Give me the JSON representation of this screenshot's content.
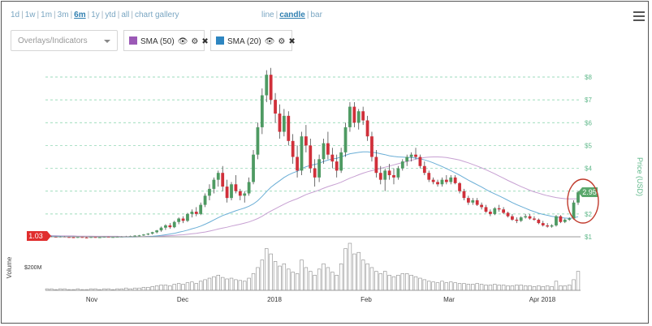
{
  "toolbar": {
    "ranges": [
      "1d",
      "1w",
      "1m",
      "3m",
      "6m",
      "1y",
      "ytd",
      "all",
      "chart gallery"
    ],
    "active_range": "6m",
    "types": [
      "line",
      "candle",
      "bar"
    ],
    "active_type": "candle"
  },
  "overlays": {
    "placeholder": "Overlays/Indicators",
    "indicators": [
      {
        "label": "SMA (50)",
        "color": "#9b59b6"
      },
      {
        "label": "SMA (20)",
        "color": "#2e86c1"
      }
    ]
  },
  "chart_data": {
    "type": "candlestick",
    "ylabel": "Price (USD)",
    "volume_label": "Volume",
    "volume_tick": "$200M",
    "y_ticks": [
      "$1",
      "$2",
      "$3",
      "$4",
      "$5",
      "$6",
      "$7",
      "$8"
    ],
    "ylim": [
      1,
      8
    ],
    "x_ticks": [
      "Nov",
      "Dec",
      "2018",
      "Feb",
      "Mar",
      "Apr 2018"
    ],
    "start_badge": "1.03",
    "end_badge": "2.95",
    "colors": {
      "up": "#4e9a62",
      "down": "#d0303a",
      "sma50": "#c7a0d2",
      "sma20": "#6aaed6",
      "grid": "#7fd0a6",
      "badge_start": "#e02e2e",
      "badge_end": "#5aa86c"
    },
    "candles": [
      [
        1.03,
        1.05,
        1.0,
        1.02
      ],
      [
        1.02,
        1.04,
        0.98,
        1.0
      ],
      [
        1.0,
        1.02,
        0.97,
        0.99
      ],
      [
        0.99,
        1.03,
        0.97,
        1.01
      ],
      [
        1.01,
        1.03,
        0.98,
        0.99
      ],
      [
        0.99,
        1.01,
        0.96,
        0.98
      ],
      [
        0.98,
        1.0,
        0.95,
        0.97
      ],
      [
        0.97,
        1.0,
        0.95,
        0.99
      ],
      [
        0.99,
        1.01,
        0.96,
        0.97
      ],
      [
        0.97,
        0.99,
        0.94,
        0.96
      ],
      [
        0.96,
        1.0,
        0.95,
        0.99
      ],
      [
        0.99,
        1.01,
        0.96,
        0.97
      ],
      [
        0.97,
        1.0,
        0.95,
        0.98
      ],
      [
        0.98,
        1.02,
        0.96,
        1.0
      ],
      [
        1.0,
        1.02,
        0.97,
        0.98
      ],
      [
        0.98,
        1.01,
        0.96,
        0.99
      ],
      [
        0.99,
        1.02,
        0.97,
        1.0
      ],
      [
        1.0,
        1.03,
        0.98,
        1.01
      ],
      [
        1.01,
        1.04,
        0.99,
        1.02
      ],
      [
        1.02,
        1.05,
        1.0,
        1.03
      ],
      [
        1.03,
        1.07,
        1.01,
        1.05
      ],
      [
        1.05,
        1.08,
        1.02,
        1.06
      ],
      [
        1.06,
        1.12,
        1.04,
        1.1
      ],
      [
        1.1,
        1.16,
        1.07,
        1.14
      ],
      [
        1.14,
        1.22,
        1.1,
        1.2
      ],
      [
        1.2,
        1.3,
        1.15,
        1.28
      ],
      [
        1.28,
        1.45,
        1.22,
        1.4
      ],
      [
        1.4,
        1.55,
        1.3,
        1.5
      ],
      [
        1.5,
        1.6,
        1.35,
        1.42
      ],
      [
        1.42,
        1.7,
        1.38,
        1.65
      ],
      [
        1.65,
        1.85,
        1.55,
        1.8
      ],
      [
        1.8,
        1.9,
        1.6,
        1.7
      ],
      [
        1.7,
        2.05,
        1.65,
        2.0
      ],
      [
        2.0,
        2.2,
        1.85,
        2.1
      ],
      [
        2.1,
        2.3,
        1.9,
        2.0
      ],
      [
        2.0,
        2.5,
        1.95,
        2.4
      ],
      [
        2.4,
        2.9,
        2.3,
        2.8
      ],
      [
        2.8,
        3.3,
        2.6,
        3.1
      ],
      [
        3.1,
        3.6,
        2.9,
        3.5
      ],
      [
        3.5,
        3.9,
        3.2,
        3.8
      ],
      [
        3.8,
        4.1,
        3.0,
        3.2
      ],
      [
        3.2,
        3.5,
        2.5,
        2.7
      ],
      [
        2.7,
        3.4,
        2.6,
        3.3
      ],
      [
        3.3,
        3.7,
        2.9,
        3.0
      ],
      [
        3.0,
        3.1,
        2.6,
        2.8
      ],
      [
        2.8,
        3.0,
        2.5,
        2.9
      ],
      [
        2.9,
        3.6,
        2.8,
        3.4
      ],
      [
        3.4,
        4.8,
        3.3,
        4.6
      ],
      [
        4.6,
        6.0,
        4.4,
        5.8
      ],
      [
        5.8,
        7.5,
        5.5,
        7.2
      ],
      [
        7.2,
        8.3,
        6.9,
        8.1
      ],
      [
        8.1,
        8.4,
        6.8,
        7.0
      ],
      [
        7.0,
        7.3,
        6.0,
        6.4
      ],
      [
        6.4,
        6.8,
        5.3,
        5.6
      ],
      [
        5.6,
        6.6,
        5.4,
        6.3
      ],
      [
        6.3,
        6.5,
        5.0,
        5.2
      ],
      [
        5.2,
        5.5,
        4.2,
        4.5
      ],
      [
        4.5,
        5.0,
        3.6,
        3.9
      ],
      [
        3.9,
        5.6,
        3.7,
        5.4
      ],
      [
        5.4,
        5.9,
        4.7,
        5.0
      ],
      [
        5.0,
        5.3,
        3.8,
        4.0
      ],
      [
        4.0,
        4.4,
        3.2,
        3.6
      ],
      [
        3.6,
        4.6,
        3.4,
        4.4
      ],
      [
        4.4,
        5.3,
        4.2,
        5.1
      ],
      [
        5.1,
        5.6,
        4.4,
        4.6
      ],
      [
        4.6,
        4.9,
        4.0,
        4.3
      ],
      [
        4.3,
        4.6,
        3.6,
        3.9
      ],
      [
        3.9,
        4.9,
        3.8,
        4.7
      ],
      [
        4.7,
        6.0,
        4.5,
        5.8
      ],
      [
        5.8,
        6.9,
        5.6,
        6.7
      ],
      [
        6.7,
        6.9,
        5.8,
        6.0
      ],
      [
        6.0,
        6.6,
        5.7,
        6.5
      ],
      [
        6.5,
        6.7,
        5.9,
        6.1
      ],
      [
        6.1,
        6.3,
        5.2,
        5.4
      ],
      [
        5.4,
        5.6,
        4.3,
        4.5
      ],
      [
        4.5,
        4.8,
        3.6,
        3.8
      ],
      [
        3.8,
        4.1,
        3.3,
        3.5
      ],
      [
        3.5,
        4.0,
        3.0,
        3.9
      ],
      [
        3.9,
        4.2,
        3.5,
        3.7
      ],
      [
        3.7,
        4.0,
        3.3,
        3.6
      ],
      [
        3.6,
        4.1,
        3.5,
        4.0
      ],
      [
        4.0,
        4.4,
        3.9,
        4.3
      ],
      [
        4.3,
        4.6,
        4.1,
        4.5
      ],
      [
        4.5,
        4.7,
        4.3,
        4.6
      ],
      [
        4.6,
        4.9,
        4.4,
        4.5
      ],
      [
        4.5,
        4.6,
        4.0,
        4.1
      ],
      [
        4.1,
        4.3,
        3.7,
        3.8
      ],
      [
        3.8,
        3.9,
        3.4,
        3.5
      ],
      [
        3.5,
        3.6,
        3.3,
        3.4
      ],
      [
        3.4,
        3.5,
        3.2,
        3.3
      ],
      [
        3.3,
        3.6,
        3.2,
        3.5
      ],
      [
        3.5,
        3.7,
        3.3,
        3.4
      ],
      [
        3.4,
        3.7,
        3.3,
        3.6
      ],
      [
        3.6,
        3.7,
        3.3,
        3.35
      ],
      [
        3.35,
        3.4,
        2.9,
        3.0
      ],
      [
        3.0,
        3.1,
        2.6,
        2.7
      ],
      [
        2.7,
        2.8,
        2.4,
        2.5
      ],
      [
        2.5,
        2.7,
        2.4,
        2.6
      ],
      [
        2.6,
        2.7,
        2.35,
        2.4
      ],
      [
        2.4,
        2.5,
        2.2,
        2.3
      ],
      [
        2.3,
        2.4,
        2.05,
        2.1
      ],
      [
        2.1,
        2.2,
        1.9,
        2.0
      ],
      [
        2.0,
        2.3,
        1.95,
        2.25
      ],
      [
        2.25,
        2.4,
        2.1,
        2.2
      ],
      [
        2.2,
        2.3,
        2.0,
        2.05
      ],
      [
        2.05,
        2.1,
        1.85,
        1.9
      ],
      [
        1.9,
        2.0,
        1.7,
        1.75
      ],
      [
        1.75,
        1.85,
        1.6,
        1.7
      ],
      [
        1.7,
        1.9,
        1.65,
        1.85
      ],
      [
        1.85,
        2.0,
        1.8,
        1.9
      ],
      [
        1.9,
        2.0,
        1.75,
        1.8
      ],
      [
        1.8,
        1.9,
        1.7,
        1.75
      ],
      [
        1.75,
        1.8,
        1.55,
        1.6
      ],
      [
        1.6,
        1.7,
        1.45,
        1.5
      ],
      [
        1.5,
        1.6,
        1.4,
        1.45
      ],
      [
        1.45,
        1.55,
        1.4,
        1.5
      ],
      [
        1.5,
        1.95,
        1.45,
        1.9
      ],
      [
        1.9,
        1.95,
        1.6,
        1.65
      ],
      [
        1.65,
        1.8,
        1.6,
        1.75
      ],
      [
        1.75,
        1.85,
        1.7,
        1.8
      ],
      [
        1.8,
        2.6,
        1.75,
        2.5
      ],
      [
        2.5,
        3.0,
        2.4,
        2.95
      ]
    ],
    "volumes": [
      2,
      2,
      1,
      2,
      2,
      1,
      1,
      2,
      1,
      1,
      2,
      2,
      1,
      2,
      2,
      1,
      2,
      2,
      3,
      2,
      3,
      3,
      4,
      4,
      5,
      6,
      7,
      7,
      6,
      8,
      9,
      8,
      10,
      11,
      9,
      12,
      14,
      16,
      18,
      20,
      17,
      15,
      16,
      14,
      13,
      12,
      16,
      22,
      30,
      40,
      55,
      48,
      38,
      32,
      35,
      28,
      24,
      22,
      40,
      30,
      25,
      20,
      28,
      35,
      30,
      24,
      20,
      35,
      55,
      62,
      48,
      50,
      40,
      35,
      30,
      25,
      22,
      25,
      20,
      18,
      20,
      22,
      22,
      20,
      18,
      16,
      14,
      12,
      11,
      10,
      12,
      10,
      11,
      10,
      9,
      9,
      8,
      8,
      9,
      8,
      7,
      7,
      8,
      7,
      7,
      6,
      6,
      7,
      7,
      6,
      6,
      5,
      6,
      5,
      6,
      5,
      12,
      6,
      6,
      7,
      14,
      25
    ],
    "sma20": [
      1.03,
      1.03,
      1.02,
      1.02,
      1.01,
      1.01,
      1.01,
      1.0,
      1.0,
      1.0,
      0.99,
      0.99,
      0.99,
      0.99,
      0.99,
      0.99,
      0.99,
      0.99,
      0.99,
      0.99,
      0.99,
      1.0,
      1.0,
      1.01,
      1.02,
      1.04,
      1.06,
      1.09,
      1.12,
      1.15,
      1.2,
      1.24,
      1.29,
      1.35,
      1.4,
      1.47,
      1.55,
      1.64,
      1.74,
      1.84,
      1.93,
      2.0,
      2.07,
      2.14,
      2.2,
      2.26,
      2.34,
      2.44,
      2.58,
      2.77,
      2.98,
      3.17,
      3.32,
      3.46,
      3.6,
      3.71,
      3.8,
      3.87,
      3.98,
      4.07,
      4.13,
      4.17,
      4.22,
      4.3,
      4.36,
      4.41,
      4.44,
      4.5,
      4.57,
      4.64,
      4.67,
      4.7,
      4.72,
      4.72,
      4.7,
      4.68,
      4.64,
      4.6,
      4.55,
      4.52,
      4.5,
      4.49,
      4.48,
      4.47,
      4.45,
      4.42,
      4.37,
      4.31,
      4.24,
      4.16,
      4.08,
      3.99,
      3.9,
      3.8,
      3.7,
      3.59,
      3.48,
      3.38,
      3.28,
      3.18,
      3.07,
      2.97,
      2.88,
      2.79,
      2.7,
      2.6,
      2.5,
      2.41,
      2.33,
      2.25,
      2.17,
      2.1,
      2.03,
      1.98,
      1.94,
      1.9,
      1.87,
      1.84,
      1.82,
      1.81,
      1.83,
      1.88
    ],
    "sma50": [
      1.05,
      1.05,
      1.05,
      1.04,
      1.04,
      1.04,
      1.04,
      1.03,
      1.03,
      1.03,
      1.03,
      1.02,
      1.02,
      1.02,
      1.02,
      1.02,
      1.02,
      1.01,
      1.01,
      1.01,
      1.01,
      1.01,
      1.01,
      1.02,
      1.02,
      1.03,
      1.03,
      1.04,
      1.05,
      1.06,
      1.08,
      1.09,
      1.11,
      1.13,
      1.15,
      1.18,
      1.21,
      1.25,
      1.29,
      1.34,
      1.38,
      1.42,
      1.47,
      1.51,
      1.55,
      1.6,
      1.65,
      1.72,
      1.8,
      1.9,
      2.02,
      2.13,
      2.23,
      2.33,
      2.43,
      2.52,
      2.6,
      2.67,
      2.76,
      2.85,
      2.92,
      2.98,
      3.05,
      3.13,
      3.2,
      3.26,
      3.32,
      3.39,
      3.48,
      3.57,
      3.64,
      3.72,
      3.79,
      3.85,
      3.9,
      3.95,
      4.0,
      4.05,
      4.1,
      4.15,
      4.2,
      4.25,
      4.3,
      4.35,
      4.4,
      4.44,
      4.47,
      4.49,
      4.5,
      4.5,
      4.49,
      4.47,
      4.44,
      4.4,
      4.36,
      4.3,
      4.24,
      4.17,
      4.1,
      4.02,
      3.94,
      3.85,
      3.76,
      3.66,
      3.57,
      3.47,
      3.38,
      3.29,
      3.2,
      3.12,
      3.04,
      2.97,
      2.91,
      2.85,
      2.8,
      2.76,
      2.72,
      2.69,
      2.67,
      2.66,
      2.66,
      2.67
    ]
  }
}
